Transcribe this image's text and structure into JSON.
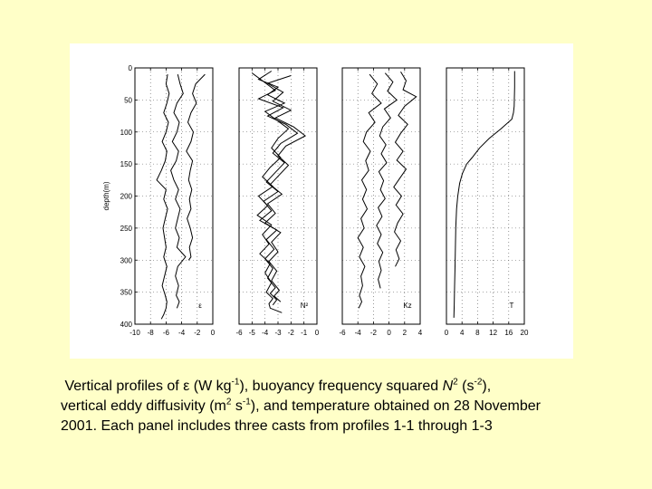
{
  "caption": {
    "line1_a": "Vertical profiles of ",
    "line1_eps": "ε",
    "line1_b": " (W kg",
    "line1_sup1": "-1",
    "line1_c": "), buoyancy frequency squared ",
    "line1_n": "N",
    "line1_sup2": "2",
    "line1_d": " (s",
    "line1_sup3": "-2",
    "line1_e": "),",
    "line2_a": "vertical eddy diffusivity  (m",
    "line2_sup1": "2",
    "line2_b": " s",
    "line2_sup2": "-1",
    "line2_c": "), and temperature obtained on 28 November",
    "line3": "2001. Each panel includes three casts from profiles 1-1 through 1-3"
  },
  "chart_data": [
    {
      "type": "line",
      "panel_label": "ε",
      "ylabel": "depth(m)",
      "yticks": [
        "0",
        "50",
        "100",
        "150",
        "200",
        "250",
        "300",
        "350",
        "400"
      ],
      "xticks": [
        "-10",
        "-8",
        "-6",
        "-4",
        "-2",
        "0"
      ],
      "xlim": [
        -10,
        0
      ],
      "ylim": [
        400,
        0
      ],
      "grid": "dotted",
      "series": [
        {
          "x": [
            -5.8,
            -6.0,
            -5.6,
            -5.9,
            -6.3,
            -5.7,
            -6.0,
            -6.5,
            -5.9,
            -6.1,
            -6.6,
            -7.2,
            -6.0,
            -6.3,
            -5.8,
            -6.1,
            -6.4,
            -6.2,
            -6.0,
            -6.3,
            -5.9,
            -6.2,
            -6.5,
            -6.1,
            -5.9,
            -6.0,
            -6.3,
            -6.6
          ],
          "y": [
            10,
            25,
            40,
            55,
            70,
            85,
            100,
            115,
            130,
            145,
            160,
            175,
            190,
            205,
            220,
            235,
            250,
            265,
            280,
            295,
            310,
            325,
            340,
            355,
            365,
            375,
            385,
            392
          ]
        },
        {
          "x": [
            -4.5,
            -4.2,
            -3.8,
            -4.6,
            -5.0,
            -4.3,
            -4.6,
            -5.2,
            -4.4,
            -4.7,
            -5.4,
            -5.0,
            -4.4,
            -4.8,
            -4.2,
            -4.5,
            -4.8,
            -4.3,
            -4.6,
            -3.5,
            -4.5,
            -4.8,
            -4.4,
            -4.7,
            -4.3,
            -4.6
          ],
          "y": [
            10,
            25,
            40,
            55,
            70,
            85,
            100,
            115,
            130,
            145,
            160,
            175,
            190,
            205,
            220,
            235,
            250,
            265,
            280,
            295,
            310,
            325,
            340,
            355,
            365,
            375
          ]
        },
        {
          "x": [
            -1.0,
            -2.2,
            -2.6,
            -2.1,
            -2.8,
            -3.2,
            -2.5,
            -2.8,
            -3.4,
            -2.6,
            -2.9,
            -3.1,
            -2.7,
            -3.0,
            -2.8,
            -3.3,
            -2.9,
            -2.6,
            -3.0,
            -2.8,
            -3.1
          ],
          "y": [
            10,
            25,
            40,
            55,
            70,
            85,
            100,
            115,
            130,
            145,
            160,
            175,
            190,
            205,
            220,
            235,
            250,
            265,
            280,
            295,
            300
          ]
        }
      ]
    },
    {
      "type": "line",
      "panel_label": "N²",
      "xticks": [
        "-6",
        "-5",
        "-4",
        "-3",
        "-2",
        "-1",
        "0"
      ],
      "xlim": [
        -6,
        0
      ],
      "ylim": [
        400,
        0
      ],
      "grid": "dotted",
      "series": [
        {
          "x": [
            -3.5,
            -4.5,
            -3.0,
            -3.8,
            -2.5,
            -4.0,
            -3.2,
            -2.2,
            -3.0,
            -3.5,
            -2.8,
            -3.6,
            -4.2,
            -3.4,
            -4.5,
            -3.8,
            -4.6,
            -3.5,
            -4.2,
            -3.7,
            -4.4,
            -3.6,
            -4.0,
            -3.5,
            -3.9,
            -3.4,
            -3.7,
            -3.6,
            -2.7
          ],
          "y": [
            5,
            18,
            30,
            42,
            55,
            68,
            80,
            95,
            110,
            125,
            140,
            155,
            170,
            185,
            200,
            215,
            230,
            245,
            260,
            275,
            290,
            305,
            320,
            335,
            350,
            360,
            368,
            375,
            382
          ]
        },
        {
          "x": [
            -5.0,
            -4.2,
            -3.2,
            -4.5,
            -2.6,
            -3.8,
            -2.4,
            -1.5,
            -2.8,
            -3.4,
            -2.5,
            -3.2,
            -3.9,
            -3.0,
            -4.1,
            -3.5,
            -4.4,
            -3.1,
            -3.9,
            -3.3,
            -4.0,
            -3.4,
            -3.8,
            -3.2,
            -3.6,
            -3.1,
            -3.4
          ],
          "y": [
            8,
            20,
            35,
            48,
            62,
            75,
            88,
            102,
            118,
            133,
            148,
            163,
            178,
            193,
            208,
            223,
            238,
            253,
            268,
            283,
            298,
            313,
            328,
            343,
            352,
            362,
            370
          ]
        },
        {
          "x": [
            -2.0,
            -3.8,
            -2.6,
            -3.4,
            -2.0,
            -3.2,
            -1.8,
            -0.9,
            -2.4,
            -3.0,
            -2.2,
            -2.9,
            -3.6,
            -2.7,
            -3.8,
            -3.2,
            -4.0,
            -2.8,
            -3.5,
            -3.0,
            -3.7,
            -3.1,
            -3.5,
            -2.9,
            -3.3,
            -2.8
          ],
          "y": [
            12,
            24,
            38,
            52,
            66,
            78,
            92,
            106,
            122,
            137,
            152,
            167,
            182,
            197,
            212,
            227,
            242,
            257,
            272,
            287,
            302,
            317,
            332,
            347,
            356,
            365
          ]
        }
      ]
    },
    {
      "type": "line",
      "panel_label": "Kz",
      "xticks": [
        "-6",
        "-4",
        "-2",
        "0",
        "2",
        "4"
      ],
      "xlim": [
        -6,
        4
      ],
      "ylim": [
        400,
        0
      ],
      "grid": "dotted",
      "series": [
        {
          "x": [
            -2.5,
            -1.5,
            -2.2,
            -1.0,
            -2.6,
            -1.8,
            -2.9,
            -3.3,
            -2.4,
            -3.0,
            -2.6,
            -3.5,
            -2.9,
            -3.4,
            -2.8,
            -3.6,
            -3.2,
            -4.0,
            -3.3,
            -3.8,
            -3.1,
            -3.6,
            -3.4,
            -3.8,
            -3.5,
            -3.9
          ],
          "y": [
            10,
            25,
            40,
            55,
            70,
            85,
            100,
            115,
            130,
            145,
            160,
            175,
            190,
            205,
            220,
            235,
            250,
            265,
            280,
            295,
            310,
            325,
            340,
            355,
            365,
            375
          ]
        },
        {
          "x": [
            -0.5,
            0.5,
            -0.2,
            1.0,
            -0.6,
            0.2,
            -0.8,
            -1.2,
            -0.4,
            -1.0,
            -0.3,
            -1.3,
            -0.7,
            -1.1,
            -0.5,
            -1.4,
            -0.9,
            -1.6,
            -1.0,
            -1.5,
            -0.8,
            -1.3,
            -1.0,
            -1.4,
            -1.1
          ],
          "y": [
            8,
            22,
            36,
            50,
            64,
            78,
            92,
            106,
            120,
            134,
            148,
            162,
            176,
            190,
            204,
            218,
            232,
            246,
            260,
            274,
            288,
            302,
            316,
            330,
            344
          ]
        },
        {
          "x": [
            1.5,
            2.2,
            1.8,
            3.5,
            2.0,
            1.2,
            2.4,
            1.5,
            0.8,
            1.8,
            1.0,
            2.2,
            1.4,
            0.6,
            1.6,
            0.9,
            1.8,
            1.1,
            0.7,
            1.5,
            0.9,
            1.3,
            0.8
          ],
          "y": [
            6,
            20,
            34,
            45,
            60,
            74,
            88,
            102,
            116,
            130,
            144,
            158,
            172,
            186,
            200,
            214,
            228,
            242,
            256,
            270,
            284,
            298,
            310
          ]
        }
      ]
    },
    {
      "type": "line",
      "panel_label": "T",
      "xticks": [
        "0",
        "4",
        "8",
        "12",
        "16",
        "20"
      ],
      "xlim": [
        0,
        20
      ],
      "ylim": [
        400,
        0
      ],
      "grid": "dotted",
      "series": [
        {
          "x": [
            17.5,
            17.5,
            17.4,
            17.2,
            16.8,
            14.0,
            11.0,
            8.5,
            6.6,
            5.2,
            4.1,
            3.4,
            2.9,
            2.6,
            2.4,
            2.3,
            2.2,
            2.1,
            2.0,
            1.9
          ],
          "y": [
            5,
            30,
            60,
            70,
            80,
            95,
            110,
            125,
            140,
            150,
            165,
            180,
            200,
            220,
            250,
            280,
            310,
            340,
            370,
            390
          ]
        }
      ]
    }
  ]
}
